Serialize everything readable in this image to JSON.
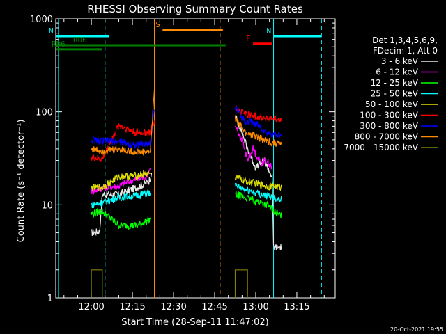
{
  "chart_data": {
    "type": "line",
    "title": "RHESSI Observing Summary Count Rates",
    "xlabel": "Start Time (28-Sep-11 11:47:02)",
    "ylabel": "Count Rate (s⁻¹ detector⁻¹)",
    "y_scale": "log",
    "ylim": [
      1,
      1000
    ],
    "xlim_minutes": [
      -13.0,
      89.0
    ],
    "x_ticks": [
      {
        "label": "12:00",
        "t": 0
      },
      {
        "label": "12:15",
        "t": 15
      },
      {
        "label": "12:30",
        "t": 30
      },
      {
        "label": "12:45",
        "t": 45
      },
      {
        "label": "13:00",
        "t": 60
      },
      {
        "label": "13:15",
        "t": 75
      }
    ],
    "y_ticks": [
      {
        "label": "1",
        "v": 1
      },
      {
        "label": "10",
        "v": 10
      },
      {
        "label": "100",
        "v": 100
      },
      {
        "label": "1000",
        "v": 1000
      }
    ],
    "legend_header": [
      "Det 1,3,4,5,6,9,",
      "FDecim 1, Att 0"
    ],
    "colors": {
      "background": "#000000",
      "axis": "#ffffff",
      "n_flag": "#00ffff",
      "s_flag": "#ff8c00",
      "f_flag": "#ff0000",
      "rd_flag": "#008000"
    },
    "series": [
      {
        "name": "3 - 6 keV",
        "color": "#e8e8e8",
        "seg1": [
          [
            0.0,
            5.0
          ],
          [
            3.0,
            5.2
          ],
          [
            4.0,
            13
          ],
          [
            9.0,
            13
          ],
          [
            10,
            13
          ],
          [
            13,
            14
          ],
          [
            18,
            16
          ],
          [
            21,
            18
          ],
          [
            22,
            22
          ]
        ],
        "seg2": [
          [
            52.5,
            90
          ],
          [
            55,
            60
          ],
          [
            57,
            40
          ],
          [
            60,
            25
          ],
          [
            63,
            30
          ],
          [
            66,
            20
          ],
          [
            66.5,
            3.5
          ],
          [
            69.5,
            3.5
          ]
        ]
      },
      {
        "name": "6 - 12 keV",
        "color": "#ff00ff",
        "seg1": [
          [
            0.0,
            14
          ],
          [
            4.0,
            15
          ],
          [
            10,
            16
          ],
          [
            14,
            18
          ],
          [
            20,
            20
          ],
          [
            21.5,
            25
          ]
        ],
        "seg2": [
          [
            52.5,
            70
          ],
          [
            55,
            50
          ],
          [
            57,
            30
          ],
          [
            59,
            40
          ],
          [
            62,
            28
          ],
          [
            64,
            30
          ],
          [
            66,
            25
          ]
        ]
      },
      {
        "name": "12 - 25 keV",
        "color": "#00ff00",
        "seg1": [
          [
            0.0,
            8.0
          ],
          [
            4.0,
            8.5
          ],
          [
            10,
            6.0
          ],
          [
            17,
            6.0
          ],
          [
            21.5,
            7.0
          ]
        ],
        "seg2": [
          [
            52.5,
            13
          ],
          [
            56,
            12
          ],
          [
            60,
            11
          ],
          [
            64,
            10
          ],
          [
            68,
            8.0
          ],
          [
            69.5,
            7.5
          ]
        ]
      },
      {
        "name": "25 - 50 keV",
        "color": "#00ffff",
        "seg1": [
          [
            0.0,
            10
          ],
          [
            4.0,
            10.5
          ],
          [
            10,
            12
          ],
          [
            16,
            12.5
          ],
          [
            21.5,
            13.5
          ]
        ],
        "seg2": [
          [
            52.5,
            16
          ],
          [
            56,
            14.5
          ],
          [
            60,
            13.5
          ],
          [
            64,
            12.5
          ],
          [
            69.5,
            11.5
          ]
        ]
      },
      {
        "name": "50 - 100 keV",
        "color": "#e0e000",
        "seg1": [
          [
            0.0,
            15
          ],
          [
            4.0,
            15.5
          ],
          [
            10,
            20
          ],
          [
            16,
            20.5
          ],
          [
            21.5,
            22
          ]
        ],
        "seg2": [
          [
            52.5,
            20
          ],
          [
            56,
            18
          ],
          [
            60,
            17
          ],
          [
            64,
            16
          ],
          [
            69.5,
            15.5
          ]
        ]
      },
      {
        "name": "100 - 300 keV",
        "color": "#ff0000",
        "seg1": [
          [
            0.0,
            32
          ],
          [
            4.0,
            31
          ],
          [
            10,
            72
          ],
          [
            16,
            60
          ],
          [
            21.5,
            60
          ],
          [
            23,
            80
          ]
        ],
        "seg2": [
          [
            52.5,
            110
          ],
          [
            56,
            95
          ],
          [
            60,
            90
          ],
          [
            64,
            85
          ],
          [
            69.5,
            80
          ]
        ]
      },
      {
        "name": "300 - 800 keV",
        "color": "#0000ff",
        "seg1": [
          [
            0.0,
            50
          ],
          [
            4.0,
            48
          ],
          [
            10,
            48
          ],
          [
            16,
            44
          ],
          [
            21.5,
            46
          ],
          [
            23,
            105
          ]
        ],
        "seg2": [
          [
            52.5,
            110
          ],
          [
            56,
            80
          ],
          [
            60,
            75
          ],
          [
            64,
            60
          ],
          [
            69.5,
            55
          ]
        ]
      },
      {
        "name": "800 - 7000 keV",
        "color": "#ff8c00",
        "seg1": [
          [
            0.0,
            40
          ],
          [
            4.0,
            38
          ],
          [
            10,
            40
          ],
          [
            16,
            37
          ],
          [
            21.5,
            37
          ],
          [
            23,
            170
          ]
        ],
        "seg2": [
          [
            52.5,
            85
          ],
          [
            56,
            60
          ],
          [
            60,
            55
          ],
          [
            64,
            48
          ],
          [
            69.5,
            45
          ]
        ]
      },
      {
        "name": "7000 - 15000 keV",
        "color": "#808000",
        "seg1": [
          [
            0.0,
            1.0
          ],
          [
            0.0,
            2.0
          ],
          [
            4.0,
            2.0
          ],
          [
            4.0,
            1.0
          ]
        ],
        "seg2": [
          [
            52.5,
            1.0
          ],
          [
            52.5,
            2.0
          ],
          [
            57,
            2.0
          ],
          [
            57,
            1.0
          ]
        ]
      }
    ],
    "flags": [
      {
        "label": "N",
        "color": "#00ffff",
        "v": 650,
        "x_start": -13.0,
        "x_end": 6.5
      },
      {
        "label": "N",
        "color": "#00ffff",
        "v": 650,
        "x_start": 66.5,
        "x_end": 84.0
      },
      {
        "label": "S",
        "color": "#ff8c00",
        "v": 760,
        "x_start": 26.0,
        "x_end": 48.0
      },
      {
        "label": "F",
        "color": "#ff0000",
        "v": 540,
        "x_start": 59.0,
        "x_end": 66.0
      },
      {
        "label": "RD0",
        "color": "#008000",
        "v": 520,
        "x_start": -13.0,
        "x_end": 49.0
      },
      {
        "label": "RD6",
        "color": "#008000",
        "v": 470,
        "x_start": -13.0,
        "x_end": 4.0
      }
    ],
    "vlines": [
      {
        "t": -12.0,
        "color": "#00ffff",
        "style": "solid"
      },
      {
        "t": 5.0,
        "color": "#00ffff",
        "style": "dashed"
      },
      {
        "t": 23.0,
        "color": "#ff8c00",
        "style": "solid"
      },
      {
        "t": 47.0,
        "color": "#ff8c00",
        "style": "dashed"
      },
      {
        "t": 66.5,
        "color": "#00ffff",
        "style": "solid"
      },
      {
        "t": 84.0,
        "color": "#00ffff",
        "style": "dashed"
      }
    ],
    "grid": false,
    "legend_position": "right"
  },
  "footer_timestamp": "20-Oct-2021 19:55"
}
